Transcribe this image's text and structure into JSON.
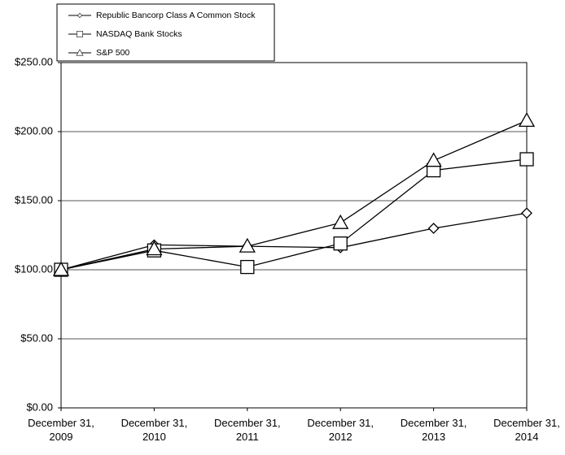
{
  "chart_data": {
    "type": "line",
    "categories": [
      "December 31, 2009",
      "December 31, 2010",
      "December 31, 2011",
      "December 31, 2012",
      "December 31, 2013",
      "December 31, 2014"
    ],
    "series": [
      {
        "name": "Republic Bancorp Class A Common Stock",
        "color": "#000000",
        "marker": "diamond",
        "values": [
          100,
          118,
          117,
          116,
          130,
          141
        ]
      },
      {
        "name": "NASDAQ Bank Stocks",
        "color": "#000000",
        "marker": "square",
        "values": [
          100,
          114,
          102,
          119,
          172,
          180
        ]
      },
      {
        "name": "S&P 500",
        "color": "#000000",
        "marker": "triangle",
        "values": [
          100,
          115,
          117,
          134,
          179,
          208
        ]
      }
    ],
    "ylim": [
      0,
      250
    ],
    "yticks": [
      {
        "value": 0,
        "label": "$0.00"
      },
      {
        "value": 50,
        "label": "$50.00"
      },
      {
        "value": 100,
        "label": "$100.00"
      },
      {
        "value": 150,
        "label": "$150.00"
      },
      {
        "value": 200,
        "label": "$200.00"
      },
      {
        "value": 250,
        "label": "$250.00"
      }
    ],
    "grid": true
  }
}
